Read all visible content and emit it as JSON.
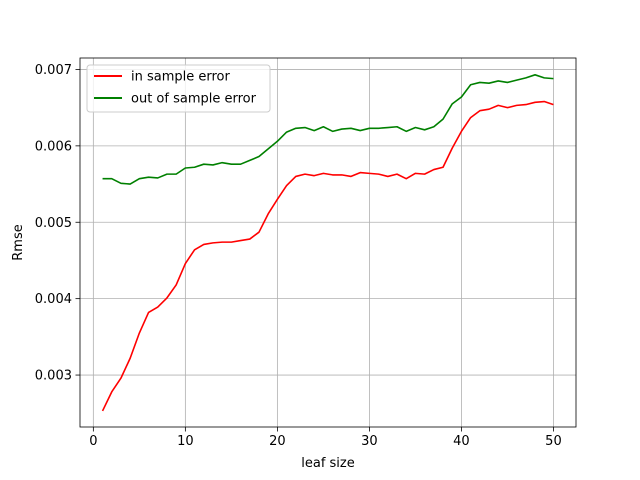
{
  "chart_data": {
    "type": "line",
    "title": "",
    "xlabel": "leaf size",
    "ylabel": "Rmse",
    "xlim": [
      -1.45,
      52.45
    ],
    "ylim": [
      0.00232,
      0.00715
    ],
    "xticks": [
      0,
      10,
      20,
      30,
      40,
      50
    ],
    "yticks": [
      0.003,
      0.004,
      0.005,
      0.006,
      0.007
    ],
    "xtick_labels": [
      "0",
      "10",
      "20",
      "30",
      "40",
      "50"
    ],
    "ytick_labels": [
      "0.003",
      "0.004",
      "0.005",
      "0.006",
      "0.007"
    ],
    "grid": true,
    "legend_position": "top-left",
    "x": [
      1,
      2,
      3,
      4,
      5,
      6,
      7,
      8,
      9,
      10,
      11,
      12,
      13,
      14,
      15,
      16,
      17,
      18,
      19,
      20,
      21,
      22,
      23,
      24,
      25,
      26,
      27,
      28,
      29,
      30,
      31,
      32,
      33,
      34,
      35,
      36,
      37,
      38,
      39,
      40,
      41,
      42,
      43,
      44,
      45,
      46,
      47,
      48,
      49,
      50
    ],
    "series": [
      {
        "name": "in sample error",
        "color": "#ff0000",
        "values": [
          0.00253,
          0.00278,
          0.00296,
          0.00322,
          0.00355,
          0.00382,
          0.00389,
          0.00401,
          0.00418,
          0.00446,
          0.00464,
          0.00471,
          0.00473,
          0.00474,
          0.00474,
          0.00476,
          0.00478,
          0.00487,
          0.00511,
          0.0053,
          0.00548,
          0.0056,
          0.00563,
          0.00561,
          0.00564,
          0.00562,
          0.00562,
          0.0056,
          0.00565,
          0.00564,
          0.00563,
          0.0056,
          0.00563,
          0.00557,
          0.00564,
          0.00563,
          0.00569,
          0.00572,
          0.00597,
          0.00619,
          0.00637,
          0.00646,
          0.00648,
          0.00653,
          0.0065,
          0.00653,
          0.00654,
          0.00657,
          0.00658,
          0.00654
        ]
      },
      {
        "name": "out of sample error",
        "color": "#008000",
        "values": [
          0.00557,
          0.00557,
          0.00551,
          0.0055,
          0.00557,
          0.00559,
          0.00558,
          0.00563,
          0.00563,
          0.00571,
          0.00572,
          0.00576,
          0.00575,
          0.00578,
          0.00576,
          0.00576,
          0.00581,
          0.00586,
          0.00596,
          0.00606,
          0.00618,
          0.00623,
          0.00624,
          0.0062,
          0.00625,
          0.00619,
          0.00622,
          0.00623,
          0.0062,
          0.00623,
          0.00623,
          0.00624,
          0.00625,
          0.00619,
          0.00624,
          0.00621,
          0.00625,
          0.00635,
          0.00655,
          0.00664,
          0.0068,
          0.00683,
          0.00682,
          0.00685,
          0.00683,
          0.00686,
          0.00689,
          0.00693,
          0.00689,
          0.00688
        ]
      }
    ]
  }
}
